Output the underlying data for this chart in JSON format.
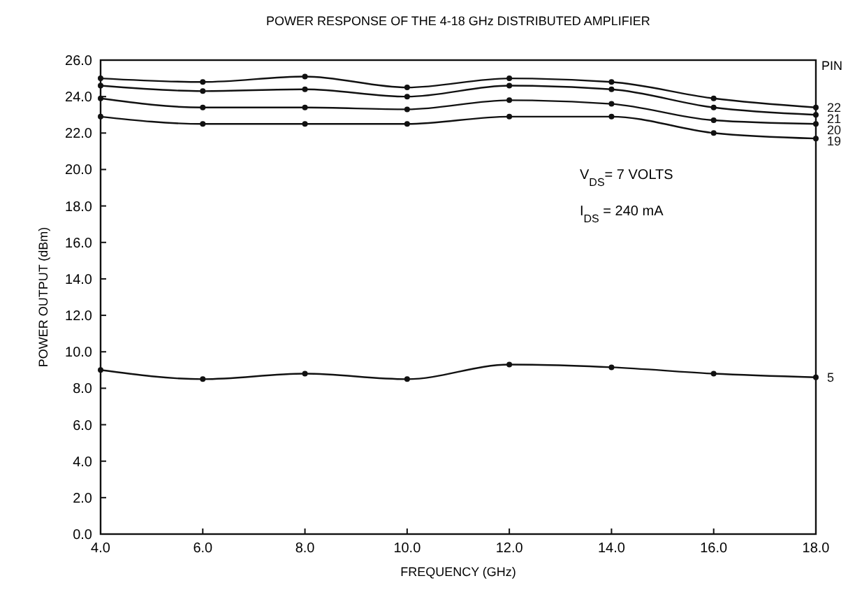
{
  "chart_data": {
    "type": "line",
    "title": "POWER RESPONSE OF THE 4-18 GHz DISTRIBUTED AMPLIFIER",
    "xlabel": "FREQUENCY (GHz)",
    "ylabel": "POWER OUTPUT (dBm)",
    "legend_title": "PIN",
    "legend": "right",
    "marker": "circle",
    "line_style": "solid",
    "grid": false,
    "x": [
      4,
      6,
      8,
      10,
      12,
      14,
      16,
      18
    ],
    "xlim": [
      4,
      18
    ],
    "xticks": [
      {
        "value": 4,
        "label": "4.0"
      },
      {
        "value": 6,
        "label": "6.0"
      },
      {
        "value": 8,
        "label": "8.0"
      },
      {
        "value": 10,
        "label": "10.0"
      },
      {
        "value": 12,
        "label": "12.0"
      },
      {
        "value": 14,
        "label": "14.0"
      },
      {
        "value": 16,
        "label": "16.0"
      },
      {
        "value": 18,
        "label": "18.0"
      }
    ],
    "ylim": [
      0,
      26
    ],
    "yticks": [
      {
        "value": 0,
        "label": "0.0"
      },
      {
        "value": 2,
        "label": "2.0"
      },
      {
        "value": 4,
        "label": "4.0"
      },
      {
        "value": 6,
        "label": "6.0"
      },
      {
        "value": 8,
        "label": "8.0"
      },
      {
        "value": 10,
        "label": "10.0"
      },
      {
        "value": 12,
        "label": "12.0"
      },
      {
        "value": 14,
        "label": "14.0"
      },
      {
        "value": 16,
        "label": "16.0"
      },
      {
        "value": 18,
        "label": "18.0"
      },
      {
        "value": 20,
        "label": "20.0"
      },
      {
        "value": 22,
        "label": "22.0"
      },
      {
        "value": 24,
        "label": "24.0"
      },
      {
        "value": 26,
        "label": "26.0"
      }
    ],
    "series": [
      {
        "name": "22",
        "color": "#111111",
        "values": [
          25.0,
          24.8,
          25.1,
          24.5,
          25.0,
          24.8,
          23.9,
          23.4
        ]
      },
      {
        "name": "21",
        "color": "#111111",
        "values": [
          24.6,
          24.3,
          24.4,
          24.0,
          24.6,
          24.4,
          23.4,
          23.0
        ]
      },
      {
        "name": "20",
        "color": "#111111",
        "values": [
          23.9,
          23.4,
          23.4,
          23.3,
          23.8,
          23.6,
          22.7,
          22.5
        ]
      },
      {
        "name": "19",
        "color": "#111111",
        "values": [
          22.9,
          22.5,
          22.5,
          22.5,
          22.9,
          22.9,
          22.0,
          21.7
        ]
      },
      {
        "name": "5",
        "color": "#111111",
        "values": [
          9.0,
          8.5,
          8.8,
          8.5,
          9.3,
          9.15,
          8.8,
          8.6
        ]
      }
    ],
    "annotations": [
      "V$_{DS}$= 7 VOLTS",
      "I$_{DS}$ = 240 mA"
    ]
  }
}
